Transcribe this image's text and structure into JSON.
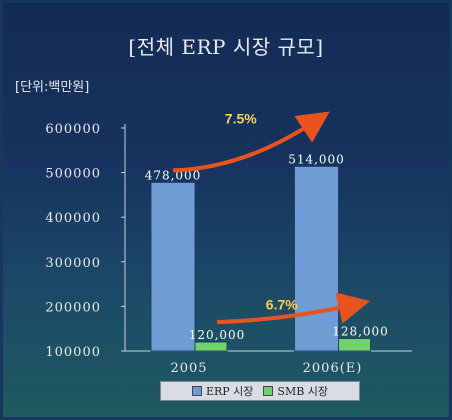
{
  "chart_data": {
    "type": "bar",
    "title": "[전체 ERP 시장 규모]",
    "unit_label": "[단위:백만원]",
    "categories": [
      "2005",
      "2006(E)"
    ],
    "series": [
      {
        "name": "ERP 시장",
        "values": [
          478000,
          514000
        ],
        "labels": [
          "478,000",
          "514,000"
        ],
        "color": "#6e9cd4"
      },
      {
        "name": "SMB 시장",
        "values": [
          120000,
          128000
        ],
        "labels": [
          "120,000",
          "128,000"
        ],
        "color": "#6dd36a"
      }
    ],
    "ylim": [
      100000,
      600000
    ],
    "yticks": [
      "100000",
      "200000",
      "300000",
      "400000",
      "500000",
      "600000"
    ],
    "growth_annotations": [
      {
        "series": "ERP 시장",
        "label": "7.5%"
      },
      {
        "series": "SMB 시장",
        "label": "6.7%"
      }
    ],
    "arrow_color": "#e8531e",
    "grid": false,
    "legend_position": "bottom"
  }
}
